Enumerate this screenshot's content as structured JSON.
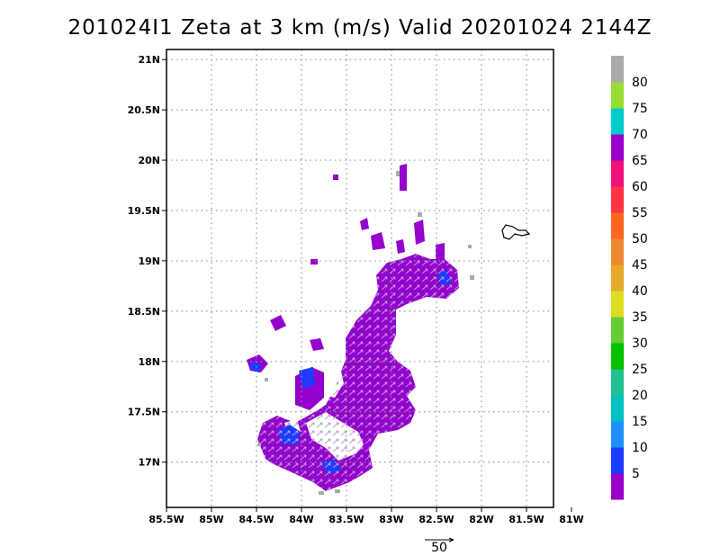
{
  "title": "201024I1 Zeta at 3 km (m/s) Valid 20201024 2144Z",
  "chart_data": {
    "type": "heatmap",
    "title": "201024I1 Zeta at 3 km (m/s) Valid 20201024 2144Z",
    "x_ticks": [
      "85.5W",
      "85W",
      "84.5W",
      "84W",
      "83.5W",
      "83W",
      "82.5W",
      "82W",
      "81.5W",
      "81W"
    ],
    "y_ticks": [
      "21N",
      "20.5N",
      "20N",
      "19.5N",
      "19N",
      "18.5N",
      "18N",
      "17.5N",
      "17N"
    ],
    "xlim": [
      -85.5,
      -81.2
    ],
    "ylim": [
      16.55,
      21.1
    ],
    "grid": true,
    "colorbar": {
      "labels": [
        "5",
        "10",
        "15",
        "20",
        "25",
        "30",
        "35",
        "40",
        "45",
        "50",
        "55",
        "60",
        "65",
        "70",
        "75",
        "80"
      ],
      "colors": [
        "#9900cc",
        "#1c3cff",
        "#1e90ff",
        "#00c0c0",
        "#20c090",
        "#00c000",
        "#66cc33",
        "#dddd22",
        "#e6a82a",
        "#ee8833",
        "#ff6622",
        "#ff3344",
        "#ee1177",
        "#9900cc",
        "#00cccc",
        "#99dd33",
        "#aaaaaa"
      ]
    },
    "vector_reference": "50"
  }
}
